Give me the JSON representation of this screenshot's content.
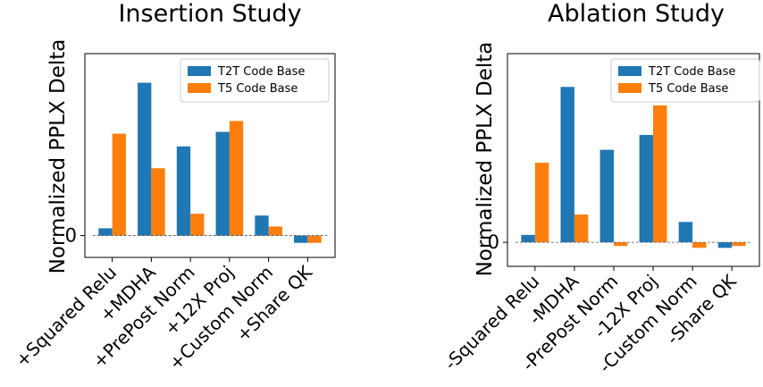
{
  "colors": {
    "t2t": "#1f77b4",
    "t5": "#ff7f0e"
  },
  "chart_data": [
    {
      "type": "bar",
      "title": "Insertion Study",
      "ylabel": "Normalized PPLX Delta",
      "xlabel": "",
      "categories": [
        "+Squared Relu",
        "+MDHA",
        "+PrePost Norm",
        "+12X Proj",
        "+Custom Norm",
        "+Share QK"
      ],
      "series": [
        {
          "name": "T2T Code Base",
          "values": [
            0.04,
            0.84,
            0.49,
            0.57,
            0.11,
            -0.04
          ]
        },
        {
          "name": "T5 Code Base",
          "values": [
            0.56,
            0.37,
            0.12,
            0.63,
            0.05,
            -0.04
          ]
        }
      ],
      "ylim": [
        -0.12,
        1.0
      ],
      "yticks": [
        0
      ],
      "ytick_labels": [
        "0"
      ],
      "zero_line": "dashed",
      "legend_position": "top-right"
    },
    {
      "type": "bar",
      "title": "Ablation Study",
      "ylabel": "Normalized PPLX Delta",
      "xlabel": "",
      "categories": [
        "-Squared Relu",
        "-MDHA",
        "-PrePost Norm",
        "-12X Proj",
        "-Custom Norm",
        "-Share QK"
      ],
      "series": [
        {
          "name": "T2T Code Base",
          "values": [
            0.04,
            0.84,
            0.5,
            0.58,
            0.11,
            -0.03
          ]
        },
        {
          "name": "T5 Code Base",
          "values": [
            0.43,
            0.15,
            -0.02,
            0.74,
            -0.03,
            -0.02
          ]
        }
      ],
      "ylim": [
        -0.13,
        1.02
      ],
      "yticks": [
        0
      ],
      "ytick_labels": [
        "0"
      ],
      "zero_line": "dashed",
      "legend_position": "top-right"
    }
  ]
}
